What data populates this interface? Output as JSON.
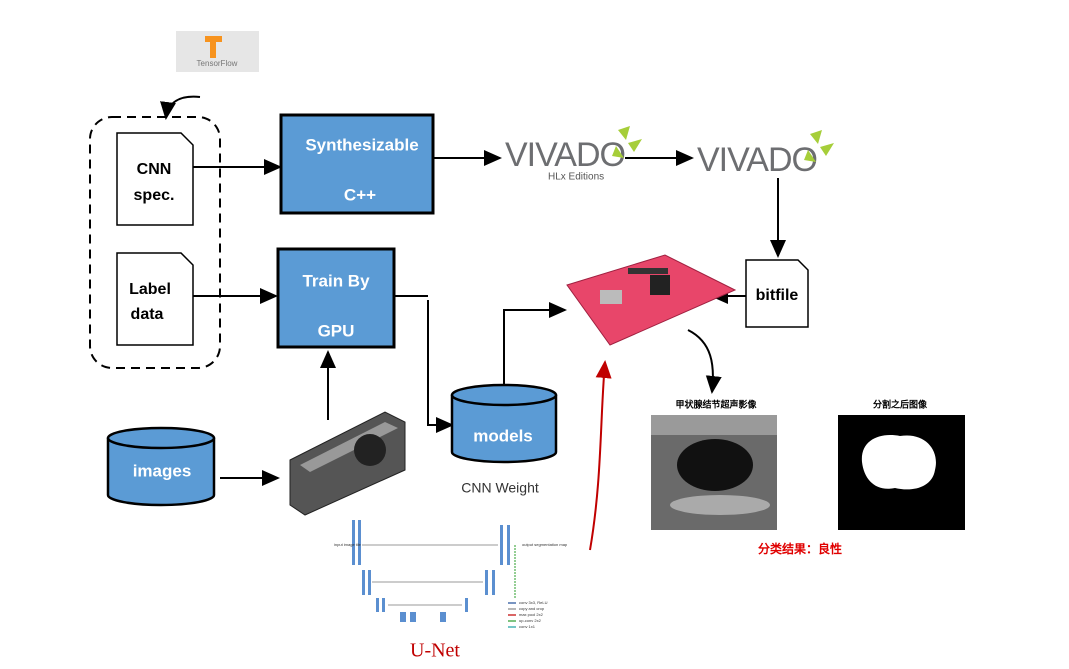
{
  "logo": {
    "tensorflow": "TensorFlow"
  },
  "nodes": {
    "cnn_spec": [
      "CNN",
      "spec."
    ],
    "label_data": [
      "Label",
      "data"
    ],
    "synth": [
      "Synthesizable",
      "C++"
    ],
    "train": [
      "Train By",
      "GPU"
    ],
    "vivado_hls": {
      "name": "VIVADO",
      "edition": "HLx Editions"
    },
    "vivado": "VIVADO",
    "bitfile": "bitfile",
    "models": "models",
    "models_caption": "CNN Weight",
    "images": "images"
  },
  "results": {
    "ultrasound_title": "甲状腺结节超声影像",
    "segmentation_title": "分割之后图像",
    "classification": "分类结果：良性"
  },
  "unet": {
    "title": "U-Net",
    "input": "input image tile",
    "output": "output segmentation map",
    "legend": [
      "conv 3x3, ReLU",
      "copy and crop",
      "max pool 2x2",
      "up-conv 2x2",
      "conv 1x1"
    ]
  }
}
